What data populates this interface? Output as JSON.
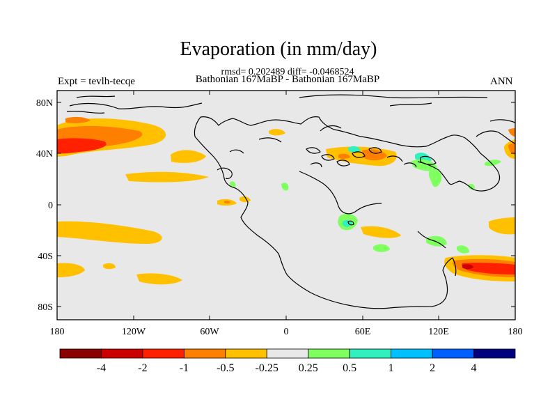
{
  "title": "Evaporation (in mm/day)",
  "stats_line": "rmsd= 0.202489 diff= -0.0468524",
  "periods_line": "Bathonian 167MaBP - Bathonian 167MaBP",
  "experiment_label": "Expt = tevlh-tecqe",
  "season_label": "ANN",
  "lat_ticks": [
    "80N",
    "40N",
    "0",
    "40S",
    "80S"
  ],
  "lon_ticks": [
    "180",
    "120W",
    "60W",
    "0",
    "60E",
    "120E",
    "180"
  ],
  "colorbar": {
    "colors": [
      "#8b0000",
      "#cd0000",
      "#ff2000",
      "#ff8000",
      "#ffc000",
      "#e8e8e8",
      "#80ff60",
      "#30f0c0",
      "#00c0ff",
      "#0060ff",
      "#000080"
    ],
    "labels": [
      "-4",
      "-2",
      "-1",
      "-0.5",
      "-0.25",
      "0.25",
      "0.5",
      "1",
      "2",
      "4"
    ]
  },
  "map_background": "#e8e8e8"
}
